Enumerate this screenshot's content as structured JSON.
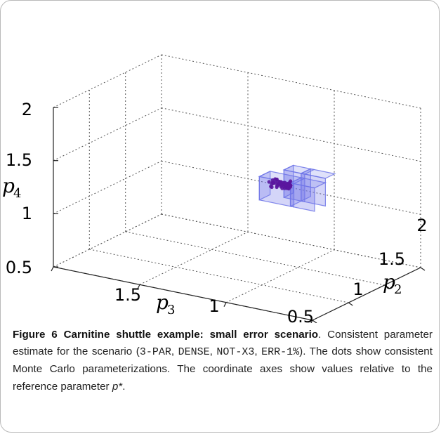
{
  "chart_data": {
    "type": "scatter",
    "projection": "3d",
    "x_axis": {
      "label": "p",
      "sub": "3",
      "ticks": [
        "1.5",
        "1",
        "0.5"
      ]
    },
    "y_axis": {
      "label": "p",
      "sub": "2",
      "ticks": [
        "2",
        "1.5",
        "1"
      ]
    },
    "z_axis": {
      "label": "p",
      "sub": "4",
      "ticks": [
        "2",
        "1.5",
        "1",
        "0.5"
      ]
    },
    "ranges": {
      "p3": [
        0.5,
        2
      ],
      "p2": [
        0.5,
        2
      ],
      "p4": [
        0.5,
        2
      ]
    },
    "grid": true,
    "box_color": "#6f75e8",
    "point_color": "#5a169e",
    "points": [
      [
        1.04,
        1.23,
        1.33
      ],
      [
        1.06,
        1.29,
        1.37
      ],
      [
        0.99,
        1.29,
        1.35
      ],
      [
        1.0,
        1.25,
        1.38
      ],
      [
        0.97,
        1.24,
        1.34
      ],
      [
        1.06,
        1.24,
        1.37
      ],
      [
        1.02,
        1.27,
        1.35
      ],
      [
        1.03,
        1.29,
        1.34
      ],
      [
        0.98,
        1.26,
        1.36
      ],
      [
        0.95,
        1.26,
        1.38
      ],
      [
        1.04,
        1.3,
        1.38
      ],
      [
        1.03,
        1.28,
        1.33
      ],
      [
        1.03,
        1.25,
        1.37
      ],
      [
        0.97,
        1.31,
        1.37
      ],
      [
        0.97,
        1.27,
        1.34
      ],
      [
        0.96,
        1.25,
        1.34
      ],
      [
        0.95,
        1.24,
        1.35
      ],
      [
        0.95,
        1.27,
        1.35
      ],
      [
        0.99,
        1.29,
        1.37
      ],
      [
        0.98,
        1.27,
        1.35
      ],
      [
        1.03,
        1.31,
        1.36
      ],
      [
        1.06,
        1.29,
        1.35
      ],
      [
        0.95,
        1.27,
        1.36
      ],
      [
        0.97,
        1.31,
        1.33
      ],
      [
        0.95,
        1.25,
        1.34
      ],
      [
        0.97,
        1.23,
        1.36
      ],
      [
        0.96,
        1.24,
        1.35
      ],
      [
        0.97,
        1.32,
        1.38
      ],
      [
        1.04,
        1.23,
        1.36
      ],
      [
        0.97,
        1.28,
        1.37
      ],
      [
        1.0,
        1.28,
        1.35
      ],
      [
        1.02,
        1.25,
        1.33
      ],
      [
        1.05,
        1.27,
        1.36
      ],
      [
        0.98,
        1.27,
        1.35
      ],
      [
        0.97,
        1.25,
        1.37
      ],
      [
        0.96,
        1.25,
        1.37
      ],
      [
        1.02,
        1.31,
        1.36
      ],
      [
        0.96,
        1.3,
        1.35
      ],
      [
        1.04,
        1.25,
        1.36
      ],
      [
        0.96,
        1.25,
        1.36
      ],
      [
        1.02,
        1.26,
        1.38
      ],
      [
        1.05,
        1.32,
        1.37
      ],
      [
        1.01,
        1.32,
        1.35
      ],
      [
        1.05,
        1.24,
        1.33
      ],
      [
        1.0,
        1.3,
        1.35
      ],
      [
        1.02,
        1.28,
        1.35
      ],
      [
        1.0,
        1.26,
        1.36
      ],
      [
        0.96,
        1.26,
        1.34
      ],
      [
        0.95,
        1.26,
        1.37
      ],
      [
        0.97,
        1.29,
        1.36
      ],
      [
        0.97,
        1.26,
        1.37
      ],
      [
        1.0,
        1.26,
        1.34
      ],
      [
        1.02,
        1.31,
        1.35
      ],
      [
        1.03,
        1.28,
        1.33
      ],
      [
        1.05,
        1.28,
        1.35
      ],
      [
        0.96,
        1.27,
        1.36
      ],
      [
        0.98,
        1.32,
        1.34
      ],
      [
        1.01,
        1.29,
        1.34
      ],
      [
        1.05,
        1.3,
        1.38
      ],
      [
        0.98,
        1.23,
        1.34
      ]
    ]
  },
  "caption": {
    "label": "Figure 6 Carnitine shuttle example: small error scenario",
    "text_1": ". Consistent parameter estimate for the scenario (",
    "code_1": "3-PAR",
    "sep_1": ", ",
    "code_2": "DENSE",
    "sep_2": ", ",
    "code_3": "NOT-X3",
    "sep_3": ", ",
    "code_4": "ERR-1%",
    "text_2": "). The dots show consistent Monte Carlo parameterizations. The coordinate axes show values relative to the reference parameter ",
    "pstar": "p*",
    "text_3": "."
  }
}
